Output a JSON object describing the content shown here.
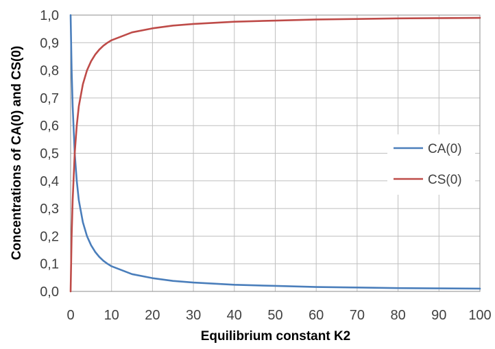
{
  "chart_data": {
    "type": "line",
    "title": "",
    "xlabel": "Equilibrium constant K2",
    "ylabel": "Concentrations of CA(0) and CS(0)",
    "xlim": [
      0,
      100
    ],
    "ylim": [
      0,
      1
    ],
    "x_ticks": [
      "0",
      "10",
      "20",
      "30",
      "40",
      "50",
      "60",
      "70",
      "80",
      "90",
      "100"
    ],
    "y_ticks": [
      "0,0",
      "0,1",
      "0,2",
      "0,3",
      "0,4",
      "0,5",
      "0,6",
      "0,7",
      "0,8",
      "0,9",
      "1,0"
    ],
    "grid": true,
    "legend_position": "right",
    "x": [
      0,
      0.25,
      0.5,
      1,
      1.5,
      2,
      3,
      4,
      5,
      6,
      7,
      8,
      9,
      10,
      15,
      20,
      25,
      30,
      40,
      50,
      60,
      70,
      80,
      90,
      100
    ],
    "series": [
      {
        "name": "CA(0)",
        "color": "#4a7ebb",
        "values": [
          1.0,
          0.8,
          0.67,
          0.5,
          0.4,
          0.33,
          0.25,
          0.2,
          0.167,
          0.143,
          0.125,
          0.111,
          0.1,
          0.091,
          0.0625,
          0.048,
          0.038,
          0.032,
          0.024,
          0.02,
          0.016,
          0.014,
          0.012,
          0.011,
          0.01
        ]
      },
      {
        "name": "CS(0)",
        "color": "#be4b48",
        "values": [
          0.0,
          0.2,
          0.33,
          0.5,
          0.6,
          0.67,
          0.75,
          0.8,
          0.833,
          0.857,
          0.875,
          0.889,
          0.9,
          0.909,
          0.9375,
          0.952,
          0.962,
          0.968,
          0.976,
          0.98,
          0.984,
          0.986,
          0.988,
          0.989,
          0.99
        ]
      }
    ]
  }
}
